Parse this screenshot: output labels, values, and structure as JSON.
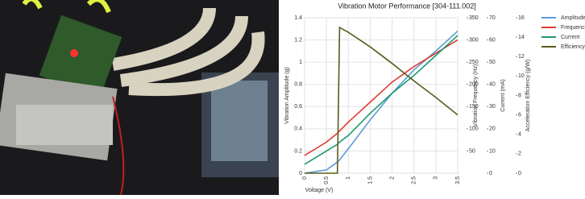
{
  "chart_data": {
    "type": "line",
    "title": "Vibration Motor Performance [304-111.002]",
    "xlabel": "Voltage (V)",
    "xlim": [
      0,
      3.5
    ],
    "xticks": [
      0,
      0.5,
      1,
      1.5,
      2,
      2.5,
      3,
      3.5
    ],
    "ylabel": "Vibration Amplitude (g)",
    "ylim": [
      0,
      1.4
    ],
    "yticks": [
      0,
      0.2,
      0.4,
      0.6,
      0.8,
      1,
      1.2,
      1.4
    ],
    "y2label": "Vibration Frequency (Hz)",
    "y2lim": [
      0,
      350
    ],
    "y2ticks": [
      50,
      100,
      150,
      200,
      250,
      300,
      350
    ],
    "y3label": "Current (mA)",
    "y3lim": [
      0,
      70
    ],
    "y3ticks": [
      0,
      10,
      20,
      30,
      40,
      50,
      60,
      70
    ],
    "y4label": "Acceleration Efficiency (g/W)",
    "y4lim": [
      0,
      16
    ],
    "y4ticks": [
      0,
      2,
      4,
      6,
      8,
      10,
      12,
      14,
      16
    ],
    "x": [
      0,
      0.5,
      0.75,
      0.8,
      1,
      1.5,
      2,
      2.5,
      3,
      3.5
    ],
    "series": [
      {
        "name": "Amplitude",
        "color": "#5b9bd5",
        "axis": "y",
        "values": [
          0,
          0.03,
          0.1,
          0.12,
          0.22,
          0.48,
          0.72,
          0.93,
          1.1,
          1.28
        ]
      },
      {
        "name": "Frequency",
        "color": "#e03c31",
        "axis": "y2",
        "values": [
          40,
          70,
          90,
          95,
          115,
          160,
          205,
          240,
          270,
          300
        ]
      },
      {
        "name": "Current",
        "color": "#1a9a6c",
        "axis": "y3",
        "values": [
          4,
          10,
          13,
          14,
          17,
          27,
          36,
          44,
          53,
          62
        ]
      },
      {
        "name": "Efficiency",
        "color": "#5a5a1e",
        "axis": "y4",
        "values": [
          0,
          0,
          0,
          15,
          14.5,
          13,
          11.3,
          9.5,
          7.8,
          6
        ]
      }
    ],
    "grid": true
  }
}
